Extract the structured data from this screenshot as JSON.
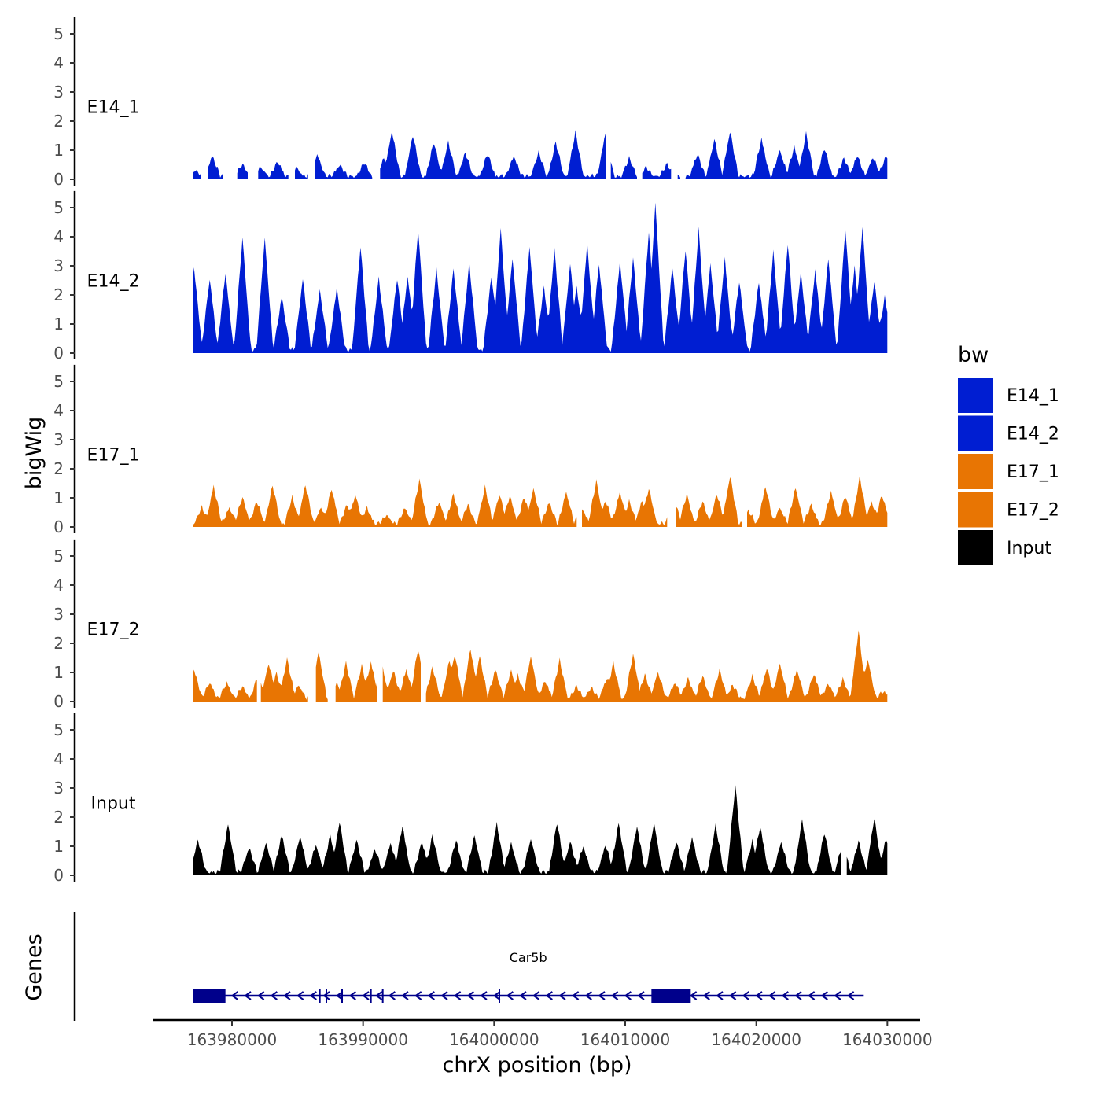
{
  "chart_data": {
    "type": "area",
    "chromosome": "chrX",
    "ylabel": "bigWig",
    "xlabel": "chrX position (bp)",
    "genes_ylabel": "Genes",
    "xlim": [
      163974000,
      164032500
    ],
    "x_ticks": [
      163980000,
      163990000,
      164000000,
      164010000,
      164020000,
      164030000
    ],
    "x_tick_labels": [
      "163980000",
      "163990000",
      "164000000",
      "164010000",
      "164020000",
      "164030000"
    ],
    "ylim": [
      0,
      5.3
    ],
    "y_ticks": [
      0,
      1,
      2,
      3,
      4,
      5
    ],
    "y_tick_labels": [
      "0",
      "1",
      "2",
      "3",
      "4",
      "5"
    ],
    "data_range": [
      163977000,
      164030000
    ],
    "legend": {
      "title": "bw",
      "position": "right",
      "entries": [
        {
          "label": "E14_1",
          "color": "#001ed2"
        },
        {
          "label": "E14_2",
          "color": "#001ed2"
        },
        {
          "label": "E17_1",
          "color": "#e87503"
        },
        {
          "label": "E17_2",
          "color": "#e87503"
        },
        {
          "label": "Input",
          "color": "#000000"
        }
      ]
    },
    "series": [
      {
        "name": "E14_1",
        "label": "E14_1",
        "color": "#001ed2",
        "peaks": [
          [
            163977200,
            0.25
          ],
          [
            163978500,
            0.75
          ],
          [
            163980800,
            0.45
          ],
          [
            163982200,
            0.35
          ],
          [
            163983500,
            0.55
          ],
          [
            163984900,
            0.35
          ],
          [
            163986500,
            0.8
          ],
          [
            163988200,
            0.45
          ],
          [
            163990100,
            0.5
          ],
          [
            163991600,
            0.65
          ],
          [
            163992200,
            1.6
          ],
          [
            163993800,
            1.45
          ],
          [
            163995400,
            1.2
          ],
          [
            163996500,
            1.2
          ],
          [
            163997800,
            0.85
          ],
          [
            163999500,
            0.8
          ],
          [
            164001500,
            0.75
          ],
          [
            164003400,
            0.85
          ],
          [
            164004700,
            1.2
          ],
          [
            164006200,
            1.55
          ],
          [
            164008500,
            1.55
          ],
          [
            164010300,
            0.65
          ],
          [
            164011600,
            0.35
          ],
          [
            164013200,
            0.45
          ],
          [
            164015500,
            0.8
          ],
          [
            164016800,
            1.3
          ],
          [
            164018000,
            1.6
          ],
          [
            164020400,
            1.35
          ],
          [
            164021800,
            0.95
          ],
          [
            164022900,
            1.05
          ],
          [
            164023800,
            1.5
          ],
          [
            164025200,
            1.0
          ],
          [
            164026700,
            0.65
          ],
          [
            164027700,
            0.75
          ],
          [
            164028900,
            0.7
          ],
          [
            164029900,
            0.75
          ]
        ],
        "gaps": [
          [
            163977700,
            163978100
          ],
          [
            163979400,
            163980300
          ],
          [
            163981300,
            163981900
          ],
          [
            163984400,
            163984700
          ],
          [
            163985900,
            163986200
          ],
          [
            163990800,
            163991200
          ],
          [
            164008600,
            164008800
          ],
          [
            164011000,
            164011200
          ],
          [
            164013600,
            164013900
          ],
          [
            164014300,
            164014500
          ]
        ]
      },
      {
        "name": "E14_2",
        "label": "E14_2",
        "color": "#001ed2",
        "peaks": [
          [
            163977100,
            2.9
          ],
          [
            163978300,
            2.5
          ],
          [
            163979500,
            2.7
          ],
          [
            163980800,
            3.9
          ],
          [
            163982500,
            3.9
          ],
          [
            163983800,
            1.9
          ],
          [
            163985400,
            2.5
          ],
          [
            163986700,
            2.1
          ],
          [
            163988000,
            2.2
          ],
          [
            163989800,
            3.6
          ],
          [
            163991200,
            2.5
          ],
          [
            163992600,
            2.5
          ],
          [
            163993400,
            2.6
          ],
          [
            163994200,
            4.2
          ],
          [
            163995600,
            2.8
          ],
          [
            163996900,
            2.8
          ],
          [
            163998100,
            3.0
          ],
          [
            163999800,
            2.6
          ],
          [
            164000500,
            4.2
          ],
          [
            164001400,
            3.2
          ],
          [
            164002700,
            3.6
          ],
          [
            164003800,
            2.2
          ],
          [
            164004600,
            3.5
          ],
          [
            164005800,
            3.0
          ],
          [
            164006300,
            2.2
          ],
          [
            164007100,
            3.7
          ],
          [
            164008000,
            3.0
          ],
          [
            164009600,
            3.1
          ],
          [
            164010600,
            3.2
          ],
          [
            164011800,
            4.1
          ],
          [
            164012300,
            5.1
          ],
          [
            164013600,
            2.9
          ],
          [
            164014600,
            3.5
          ],
          [
            164015600,
            4.2
          ],
          [
            164016500,
            3.0
          ],
          [
            164017600,
            3.2
          ],
          [
            164018700,
            2.4
          ],
          [
            164020200,
            2.4
          ],
          [
            164021300,
            3.4
          ],
          [
            164022400,
            3.7
          ],
          [
            164023400,
            2.7
          ],
          [
            164024500,
            2.8
          ],
          [
            164025500,
            3.2
          ],
          [
            164026800,
            4.2
          ],
          [
            164027500,
            2.9
          ],
          [
            164028100,
            4.3
          ],
          [
            164029000,
            2.4
          ],
          [
            164029800,
            1.9
          ]
        ],
        "gaps": []
      },
      {
        "name": "E17_1",
        "label": "E17_1",
        "color": "#e87503",
        "peaks": [
          [
            163977700,
            0.6
          ],
          [
            163978600,
            1.35
          ],
          [
            163979800,
            0.6
          ],
          [
            163980800,
            0.95
          ],
          [
            163981900,
            0.8
          ],
          [
            163983100,
            1.35
          ],
          [
            163984600,
            0.95
          ],
          [
            163985600,
            1.4
          ],
          [
            163986800,
            0.6
          ],
          [
            163987600,
            1.25
          ],
          [
            163988800,
            0.7
          ],
          [
            163989400,
            1.05
          ],
          [
            163990300,
            0.6
          ],
          [
            163991800,
            0.35
          ],
          [
            163993200,
            0.6
          ],
          [
            163994300,
            1.55
          ],
          [
            163995800,
            0.8
          ],
          [
            163996900,
            1.05
          ],
          [
            163998000,
            0.7
          ],
          [
            163999300,
            1.3
          ],
          [
            164000400,
            1.05
          ],
          [
            164001200,
            1.0
          ],
          [
            164002300,
            0.95
          ],
          [
            164003000,
            1.25
          ],
          [
            164004200,
            0.8
          ],
          [
            164005500,
            1.15
          ],
          [
            164006700,
            0.6
          ],
          [
            164007800,
            1.5
          ],
          [
            164008500,
            0.85
          ],
          [
            164009600,
            1.15
          ],
          [
            164010300,
            0.8
          ],
          [
            164011300,
            0.85
          ],
          [
            164011800,
            1.25
          ],
          [
            164013700,
            0.95
          ],
          [
            164014700,
            1.05
          ],
          [
            164015900,
            0.8
          ],
          [
            164017000,
            1.05
          ],
          [
            164018000,
            1.7
          ],
          [
            164019400,
            0.5
          ],
          [
            164020700,
            1.35
          ],
          [
            164021800,
            0.6
          ],
          [
            164023000,
            1.3
          ],
          [
            164024200,
            0.7
          ],
          [
            164025700,
            1.15
          ],
          [
            164026800,
            1.0
          ],
          [
            164027900,
            1.65
          ],
          [
            164028800,
            0.8
          ],
          [
            164029600,
            1.05
          ]
        ],
        "gaps": [
          [
            164006400,
            164006600
          ],
          [
            164013300,
            164013800
          ],
          [
            164019000,
            164019200
          ]
        ]
      },
      {
        "name": "E17_2",
        "label": "E17_2",
        "color": "#e87503",
        "peaks": [
          [
            163977100,
            1.05
          ],
          [
            163978300,
            0.6
          ],
          [
            163979600,
            0.6
          ],
          [
            163980800,
            0.45
          ],
          [
            163982000,
            0.85
          ],
          [
            163982800,
            1.25
          ],
          [
            163983400,
            0.9
          ],
          [
            163984200,
            1.4
          ],
          [
            163985100,
            0.5
          ],
          [
            163986600,
            1.65
          ],
          [
            163988000,
            0.6
          ],
          [
            163988700,
            1.25
          ],
          [
            163989900,
            1.15
          ],
          [
            163990600,
            1.3
          ],
          [
            163991400,
            1.25
          ],
          [
            163992300,
            1.0
          ],
          [
            163993300,
            1.05
          ],
          [
            163994200,
            1.75
          ],
          [
            163995300,
            1.1
          ],
          [
            163996600,
            1.35
          ],
          [
            163997000,
            1.55
          ],
          [
            163998200,
            1.75
          ],
          [
            163998900,
            1.5
          ],
          [
            164000100,
            1.05
          ],
          [
            164001300,
            1.0
          ],
          [
            164001800,
            0.85
          ],
          [
            164002800,
            1.5
          ],
          [
            164003900,
            0.65
          ],
          [
            164005000,
            1.35
          ],
          [
            164006300,
            0.45
          ],
          [
            164007400,
            0.4
          ],
          [
            164008600,
            0.75
          ],
          [
            164009100,
            1.25
          ],
          [
            164010600,
            1.55
          ],
          [
            164011500,
            0.85
          ],
          [
            164012500,
            0.95
          ],
          [
            164013800,
            0.6
          ],
          [
            164014800,
            0.75
          ],
          [
            164015900,
            0.8
          ],
          [
            164017200,
            1.0
          ],
          [
            164018200,
            0.5
          ],
          [
            164019700,
            0.8
          ],
          [
            164020800,
            1.1
          ],
          [
            164021800,
            1.25
          ],
          [
            164023100,
            1.05
          ],
          [
            164024400,
            0.9
          ],
          [
            164025500,
            0.55
          ],
          [
            164026600,
            0.7
          ],
          [
            164027800,
            2.35
          ],
          [
            164028500,
            1.4
          ],
          [
            164029700,
            0.3
          ]
        ],
        "gaps": [
          [
            163982000,
            163982100
          ],
          [
            163985900,
            163986300
          ],
          [
            163987400,
            163987800
          ],
          [
            163991200,
            163991400
          ],
          [
            163994500,
            163994700
          ]
        ]
      },
      {
        "name": "Input",
        "label": "Input",
        "color": "#000000",
        "peaks": [
          [
            163977400,
            1.15
          ],
          [
            163979700,
            1.7
          ],
          [
            163981300,
            0.9
          ],
          [
            163982600,
            1.05
          ],
          [
            163983800,
            1.35
          ],
          [
            163985200,
            1.3
          ],
          [
            163986400,
            1.0
          ],
          [
            163987500,
            1.3
          ],
          [
            163988200,
            1.8
          ],
          [
            163989500,
            1.15
          ],
          [
            163990900,
            0.85
          ],
          [
            163992100,
            1.05
          ],
          [
            163993000,
            1.65
          ],
          [
            163994500,
            1.1
          ],
          [
            163995300,
            1.3
          ],
          [
            163997100,
            1.15
          ],
          [
            163998500,
            1.3
          ],
          [
            164000200,
            1.75
          ],
          [
            164001300,
            1.05
          ],
          [
            164002800,
            1.2
          ],
          [
            164004800,
            1.75
          ],
          [
            164005800,
            1.1
          ],
          [
            164006800,
            0.95
          ],
          [
            164008500,
            1.0
          ],
          [
            164009500,
            1.75
          ],
          [
            164010900,
            1.65
          ],
          [
            164012200,
            1.75
          ],
          [
            164013900,
            1.1
          ],
          [
            164015100,
            1.25
          ],
          [
            164016900,
            1.65
          ],
          [
            164018400,
            3.0
          ],
          [
            164019700,
            1.1
          ],
          [
            164020300,
            1.65
          ],
          [
            164021900,
            1.1
          ],
          [
            164023500,
            1.85
          ],
          [
            164025200,
            1.4
          ],
          [
            164026600,
            1.05
          ],
          [
            164027800,
            1.1
          ],
          [
            164029000,
            1.9
          ],
          [
            164029900,
            1.2
          ]
        ],
        "gaps": [
          [
            164026600,
            164026800
          ]
        ]
      }
    ],
    "gene_track": {
      "gene_name": "Car5b",
      "strand": "-",
      "start": 163977000,
      "end": 164028200,
      "exons": [
        [
          163977000,
          163979500
        ],
        [
          164012000,
          164015000
        ]
      ],
      "exon_marks": [
        163986700,
        163987200,
        163988400,
        163990600,
        163991500,
        164000400
      ],
      "color": "#00008b"
    }
  }
}
